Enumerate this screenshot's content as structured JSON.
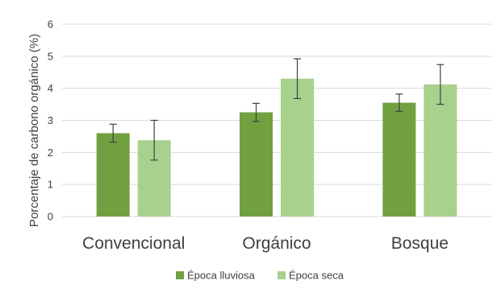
{
  "chart_data": {
    "type": "bar",
    "title": "",
    "xlabel": "",
    "ylabel": "Porcentaje de carbono orgánico (%)",
    "ylim": [
      0,
      6
    ],
    "yticks": [
      0,
      1,
      2,
      3,
      4,
      5,
      6
    ],
    "grid": true,
    "legend_position": "bottom",
    "categories": [
      "Convencional",
      "Orgánico",
      "Bosque"
    ],
    "series": [
      {
        "name": "Época lluviosa",
        "color": "#70a040",
        "values": [
          2.6,
          3.25,
          3.55
        ],
        "errors": [
          0.28,
          0.28,
          0.27
        ]
      },
      {
        "name": "Época seca",
        "color": "#a9d18e",
        "values": [
          2.38,
          4.3,
          4.12
        ],
        "errors": [
          0.62,
          0.62,
          0.62
        ]
      }
    ]
  }
}
